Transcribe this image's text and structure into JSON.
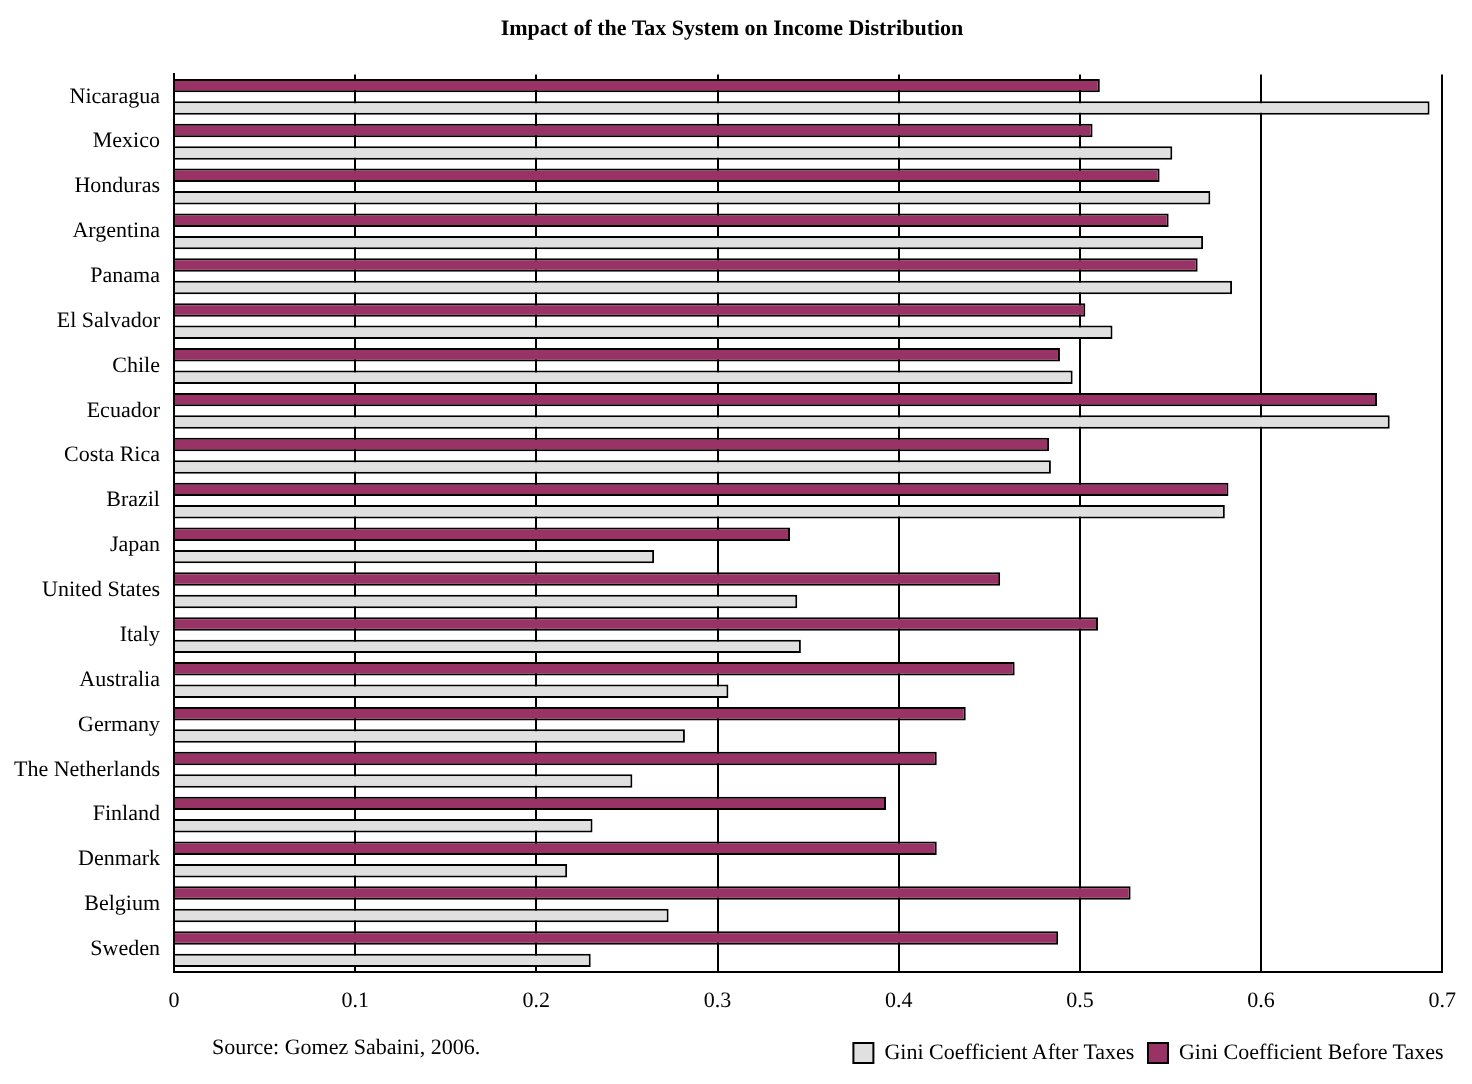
{
  "chart_data": {
    "type": "bar",
    "orientation": "horizontal",
    "title": "Impact of the Tax System on Income Distribution",
    "categories": [
      "Nicaragua",
      "Mexico",
      "Honduras",
      "Argentina",
      "Panama",
      "El Salvador",
      "Chile",
      "Ecuador",
      "Costa Rica",
      "Brazil",
      "Japan",
      "United States",
      "Italy",
      "Australia",
      "Germany",
      "The Netherlands",
      "Finland",
      "Denmark",
      "Belgium",
      "Sweden"
    ],
    "series": [
      {
        "name": "Gini Coefficient After Taxes",
        "color": "#e0e0e0",
        "values": [
          0.693,
          0.551,
          0.572,
          0.568,
          0.584,
          0.518,
          0.496,
          0.671,
          0.484,
          0.58,
          0.265,
          0.344,
          0.346,
          0.306,
          0.282,
          0.253,
          0.231,
          0.217,
          0.273,
          0.23
        ]
      },
      {
        "name": "Gini Coefficient Before Taxes",
        "color": "#993366",
        "values": [
          0.511,
          0.507,
          0.544,
          0.549,
          0.565,
          0.503,
          0.489,
          0.664,
          0.483,
          0.582,
          0.34,
          0.456,
          0.51,
          0.464,
          0.437,
          0.421,
          0.393,
          0.421,
          0.528,
          0.488
        ]
      }
    ],
    "xlim": [
      0,
      0.7
    ],
    "xticks": [
      0,
      0.1,
      0.2,
      0.3,
      0.4,
      0.5,
      0.6,
      0.7
    ],
    "grid": "x",
    "legend": "bottom right",
    "annotations": [
      "Source: Gomez Sabaini, 2006."
    ]
  }
}
